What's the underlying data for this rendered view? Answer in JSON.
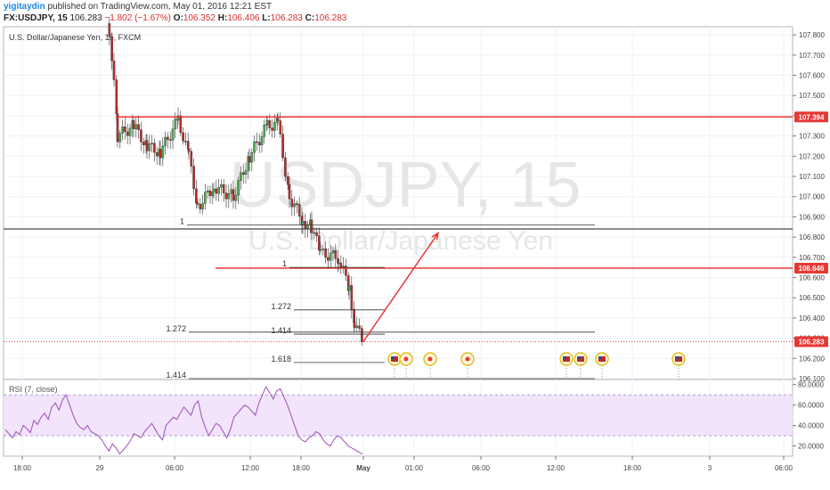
{
  "header": {
    "author": "yigitaydin",
    "published_text": "published on TradingView.com, May 01, 2016 12:21 EST",
    "symbol": "FX:USDJPY, 15",
    "last": "106.283",
    "change": "−1.802 (−1.67%)",
    "open_label": "O:",
    "open": "106.352",
    "high_label": "H:",
    "high": "106.406",
    "low_label": "L:",
    "low": "106.283",
    "close_label": "C:",
    "close": "106.283"
  },
  "colors": {
    "up": "#4caf50",
    "down": "#c62828",
    "red_line": "#e53935",
    "rsi_line": "#9c4fb5",
    "rsi_band": "#f1e4fb",
    "grid": "#eef0f4",
    "price_tag": "#e53935"
  },
  "chart_data": {
    "type": "candlestick",
    "title": "U.S. Dollar/Japanese Yen, 15, FXCM",
    "watermark_symbol": "USDJPY, 15",
    "watermark_name": "U.S. Dollar/Japanese Yen",
    "y_ticks": [
      "107.800",
      "107.700",
      "107.600",
      "107.500",
      "107.400",
      "107.300",
      "107.200",
      "107.100",
      "107.000",
      "106.900",
      "106.800",
      "106.700",
      "106.600",
      "106.500",
      "106.400",
      "106.300",
      "106.200",
      "106.100"
    ],
    "y_range": [
      106.1,
      107.85
    ],
    "x_ticks": [
      "18:00",
      "29",
      "06:00",
      "12:00",
      "18:00",
      "May",
      "01:00",
      "06:00",
      "12:00",
      "18:00",
      "3",
      "06:00"
    ],
    "price_tags": [
      {
        "value": 107.394,
        "label": "107.394"
      },
      {
        "value": 106.646,
        "label": "106.646"
      },
      {
        "value": 106.283,
        "label": "106.283"
      }
    ],
    "horizontal_lines": [
      {
        "value": 107.394,
        "color": "red"
      },
      {
        "value": 106.646,
        "color": "red"
      },
      {
        "value": 106.84,
        "color": "dark"
      }
    ],
    "fib_levels": [
      {
        "label": "1",
        "value": 106.86
      },
      {
        "label": "1",
        "value": 106.65
      },
      {
        "label": "1.272",
        "value": 106.44
      },
      {
        "label": "1.272",
        "value": 106.33
      },
      {
        "label": "1.414",
        "value": 106.32
      },
      {
        "label": "1.618",
        "value": 106.18
      },
      {
        "label": "1.414",
        "value": 106.1
      }
    ],
    "projection_arrow": {
      "from": 106.283,
      "to": 106.82
    },
    "rsi": {
      "title": "RSI (7, close)",
      "y_ticks": [
        "80.0000",
        "60.0000",
        "40.0000",
        "20.0000"
      ],
      "band": [
        30,
        70
      ],
      "values": [
        36,
        32,
        28,
        34,
        31,
        40,
        37,
        33,
        45,
        41,
        48,
        52,
        46,
        58,
        62,
        55,
        65,
        70,
        60,
        50,
        42,
        38,
        36,
        40,
        34,
        32,
        30,
        26,
        20,
        15,
        22,
        18,
        12,
        16,
        20,
        25,
        32,
        30,
        28,
        34,
        38,
        42,
        36,
        30,
        26,
        40,
        44,
        48,
        46,
        52,
        58,
        54,
        50,
        60,
        64,
        48,
        38,
        30,
        36,
        42,
        40,
        34,
        28,
        36,
        48,
        52,
        56,
        60,
        58,
        54,
        50,
        62,
        70,
        78,
        72,
        66,
        74,
        76,
        68,
        60,
        50,
        40,
        30,
        26,
        24,
        28,
        30,
        34,
        32,
        26,
        22,
        20,
        26,
        30,
        28,
        24,
        20,
        18,
        16,
        14,
        12
      ]
    }
  }
}
